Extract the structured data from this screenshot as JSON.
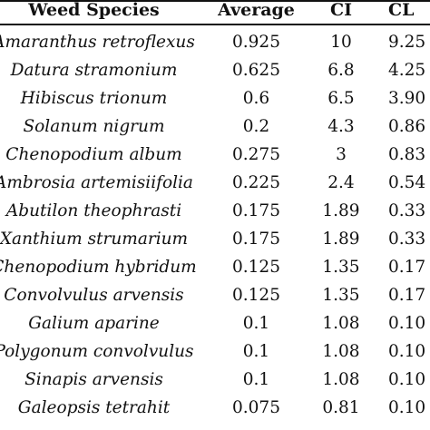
{
  "table": {
    "headers": {
      "species": "Weed Species",
      "average": "Average",
      "ci": "CI",
      "cl": "CL"
    },
    "rows": [
      {
        "species": "Amaranthus retroflexus",
        "average": "0.925",
        "ci": "10",
        "cl": "9.25"
      },
      {
        "species": "Datura stramonium",
        "average": "0.625",
        "ci": "6.8",
        "cl": "4.25"
      },
      {
        "species": "Hibiscus trionum",
        "average": "0.6",
        "ci": "6.5",
        "cl": "3.90"
      },
      {
        "species": "Solanum nigrum",
        "average": "0.2",
        "ci": "4.3",
        "cl": "0.86"
      },
      {
        "species": "Chenopodium album",
        "average": "0.275",
        "ci": "3",
        "cl": "0.83"
      },
      {
        "species": "Ambrosia artemisiifolia",
        "average": "0.225",
        "ci": "2.4",
        "cl": "0.54"
      },
      {
        "species": "Abutilon theophrasti",
        "average": "0.175",
        "ci": "1.89",
        "cl": "0.33"
      },
      {
        "species": "Xanthium strumarium",
        "average": "0.175",
        "ci": "1.89",
        "cl": "0.33"
      },
      {
        "species": "Chenopodium hybridum",
        "average": "0.125",
        "ci": "1.35",
        "cl": "0.17"
      },
      {
        "species": "Convolvulus arvensis",
        "average": "0.125",
        "ci": "1.35",
        "cl": "0.17"
      },
      {
        "species": "Galium aparine",
        "average": "0.1",
        "ci": "1.08",
        "cl": "0.10"
      },
      {
        "species": "Polygonum convolvulus",
        "average": "0.1",
        "ci": "1.08",
        "cl": "0.10"
      },
      {
        "species": "Sinapis arvensis",
        "average": "0.1",
        "ci": "1.08",
        "cl": "0.10"
      },
      {
        "species": "Galeopsis tetrahit",
        "average": "0.075",
        "ci": "0.81",
        "cl": "0.10"
      }
    ]
  }
}
